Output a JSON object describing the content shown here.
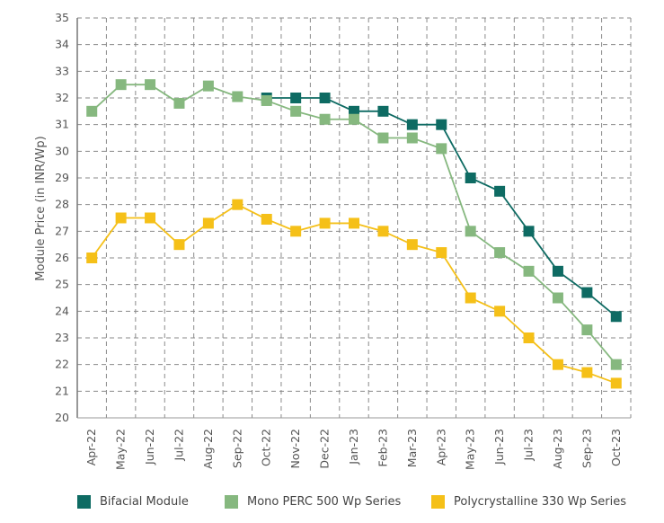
{
  "chart_data": {
    "type": "line",
    "title": "",
    "xlabel": "",
    "ylabel": "Module Price (in INR/Wp)",
    "ylim": [
      20,
      35
    ],
    "yticks": [
      20,
      21,
      22,
      23,
      24,
      25,
      26,
      27,
      28,
      29,
      30,
      31,
      32,
      33,
      34,
      35
    ],
    "grid": true,
    "legend_position": "bottom",
    "categories": [
      "Apr-22",
      "May-22",
      "Jun-22",
      "Jul-22",
      "Aug-22",
      "Sep-22",
      "Oct-22",
      "Nov-22",
      "Dec-22",
      "Jan-23",
      "Feb-23",
      "Mar-23",
      "Apr-23",
      "May-23",
      "Jun-23",
      "Jul-23",
      "Aug-23",
      "Sep-23",
      "Oct-23"
    ],
    "series": [
      {
        "name": "Bifacial Module",
        "color": "#0e6b63",
        "values": [
          null,
          null,
          null,
          null,
          null,
          null,
          32,
          32,
          32,
          31.5,
          31.5,
          31,
          31,
          29,
          28.5,
          27,
          25.5,
          24.7,
          23.8
        ]
      },
      {
        "name": "Mono PERC 500 Wp Series",
        "color": "#86b87f",
        "values": [
          31.5,
          32.5,
          32.5,
          31.8,
          32.45,
          32.05,
          31.9,
          31.5,
          31.2,
          31.2,
          30.5,
          30.5,
          30.1,
          27,
          26.2,
          25.5,
          24.5,
          23.3,
          22
        ]
      },
      {
        "name": "Polycrystalline 330 Wp Series",
        "color": "#f5c018",
        "values": [
          26,
          27.5,
          27.5,
          26.5,
          27.3,
          28,
          27.45,
          27,
          27.3,
          27.3,
          27,
          26.5,
          26.2,
          24.5,
          24,
          23,
          22,
          21.7,
          21.3
        ]
      }
    ]
  }
}
